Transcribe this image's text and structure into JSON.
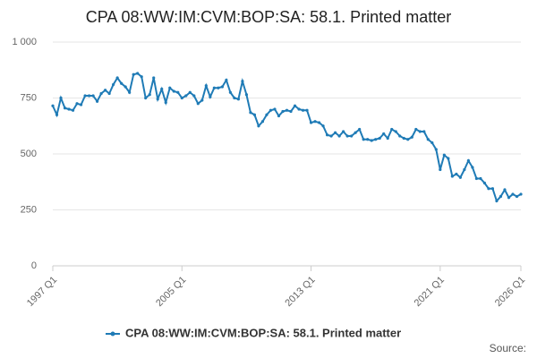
{
  "chart_data": {
    "type": "line",
    "title": "CPA 08:WW:IM:CVM:BOP:SA: 58.1. Printed matter",
    "source": "Source:",
    "categories": [
      "1997 Q1",
      null,
      null,
      null,
      null,
      null,
      null,
      null,
      null,
      null,
      null,
      null,
      null,
      null,
      null,
      null,
      null,
      null,
      null,
      null,
      null,
      null,
      null,
      null,
      null,
      null,
      null,
      null,
      null,
      null,
      null,
      null,
      "2005 Q1",
      null,
      null,
      null,
      null,
      null,
      null,
      null,
      null,
      null,
      null,
      null,
      null,
      null,
      null,
      null,
      null,
      null,
      null,
      null,
      null,
      null,
      null,
      null,
      null,
      null,
      null,
      null,
      null,
      null,
      null,
      null,
      "2013 Q1",
      null,
      null,
      null,
      null,
      null,
      null,
      null,
      null,
      null,
      null,
      null,
      null,
      null,
      null,
      null,
      null,
      null,
      null,
      null,
      null,
      null,
      null,
      null,
      null,
      null,
      null,
      null,
      null,
      null,
      null,
      null,
      "2021 Q1",
      null,
      null,
      null,
      null,
      null,
      null,
      null,
      null,
      null,
      null,
      null,
      null,
      null,
      null,
      null,
      null,
      null,
      null,
      null,
      "2026 Q1"
    ],
    "series": [
      {
        "name": "CPA 08:WW:IM:CVM:BOP:SA: 58.1. Printed matter",
        "color": "#1f7bb6",
        "values": [
          715,
          675,
          750,
          705,
          700,
          695,
          725,
          720,
          760,
          760,
          760,
          735,
          770,
          785,
          770,
          810,
          840,
          815,
          800,
          775,
          855,
          860,
          845,
          750,
          765,
          840,
          745,
          790,
          730,
          795,
          780,
          775,
          750,
          760,
          775,
          760,
          725,
          740,
          805,
          755,
          795,
          795,
          800,
          830,
          775,
          750,
          745,
          825,
          765,
          685,
          675,
          625,
          645,
          675,
          695,
          700,
          670,
          690,
          695,
          690,
          715,
          700,
          695,
          695,
          640,
          645,
          640,
          625,
          585,
          580,
          595,
          580,
          600,
          580,
          580,
          595,
          610,
          565,
          565,
          560,
          565,
          570,
          590,
          570,
          610,
          600,
          580,
          570,
          565,
          575,
          610,
          600,
          600,
          565,
          550,
          520,
          430,
          495,
          480,
          400,
          410,
          395,
          430,
          470,
          440,
          390,
          390,
          370,
          345,
          345,
          290,
          310,
          340,
          305,
          320,
          310,
          320
        ]
      }
    ],
    "ylim": [
      0,
      1000
    ],
    "yticks": [
      0,
      250,
      500,
      750,
      {
        "value": 1000,
        "label": "1 000"
      }
    ],
    "grid": true,
    "legend": "bottom"
  }
}
